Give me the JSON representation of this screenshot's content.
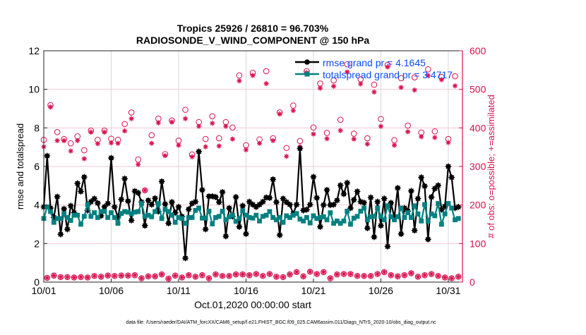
{
  "chart_data": {
    "type": "line",
    "title": "Tropics 25926 / 26810 = 96.703%",
    "subtitle": "RADIOSONDE_V_WIND_COMPONENT @ 150 hPa",
    "xlabel": "Oct.01,2020 00:00:00 start",
    "ylabel": "rmse and totalspread",
    "ylabel_right": "# of obs: o=possible; +=assimilated",
    "footer": "data file: /Users/raeder/DAI/ATM_forcXX/CAM6_setup/f.e21.FHIST_BGC.f09_025.CAM6assim.011/Diags_NTrS_2020-10/obs_diag_output.nc",
    "x_start": "2020-10-01 00:00",
    "x_interval_hours": 6,
    "x_ticks": [
      "10/01",
      "10/06",
      "10/11",
      "10/16",
      "10/21",
      "10/26",
      "10/31"
    ],
    "x_tick_days": [
      0,
      5,
      10,
      15,
      20,
      25,
      30
    ],
    "xlim_days": [
      0,
      31.05
    ],
    "ylim": [
      0,
      12
    ],
    "y_ticks": [
      "0",
      "2",
      "4",
      "6",
      "8",
      "10",
      "12"
    ],
    "ylim_right": [
      0,
      600
    ],
    "y_ticks_right": [
      "0",
      "100",
      "200",
      "300",
      "400",
      "500",
      "600"
    ],
    "grid": true,
    "legend_position": "top-right",
    "colors": {
      "rmse": "#000000",
      "spread": "#008080",
      "obs": "#d9114f",
      "legend_text": "#0a4cff",
      "grid_h": "#f2c6d4",
      "grid_v": "#d8d8d8"
    },
    "series": [
      {
        "name": "rmse grand pr = 4.1645",
        "axis": "left",
        "marker": "filled-asterisk-circle",
        "values": [
          3.9,
          6.55,
          3.84,
          3.35,
          4.43,
          2.48,
          3.8,
          2.74,
          3.96,
          3.6,
          5.12,
          4.7,
          5.45,
          3.72,
          4.17,
          4.33,
          4.1,
          3.44,
          3.9,
          4.08,
          6.44,
          3.9,
          3.35,
          4.29,
          5.37,
          4.2,
          3.2,
          4.72,
          4.63,
          4.15,
          2.93,
          4.24,
          4.02,
          4.35,
          3.66,
          5.22,
          4.05,
          3.05,
          4.15,
          3.6,
          3.9,
          3.4,
          1.24,
          3.78,
          4.08,
          4.17,
          6.77,
          4.78,
          2.74,
          4.45,
          4.45,
          4.41,
          4.15,
          4.67,
          2.38,
          3.84,
          3.41,
          4.41,
          2.87,
          3.96,
          2.5,
          4.17,
          4.02,
          3.9,
          4.02,
          4.17,
          4.39,
          4.37,
          5.33,
          4.15,
          2.44,
          4.33,
          4.15,
          4.02,
          3.54,
          4.02,
          6.93,
          3.72,
          3.76,
          4.02,
          5.46,
          4.37,
          2.87,
          4.0,
          4.78,
          4.0,
          4.02,
          4.24,
          5.02,
          4.57,
          5.15,
          3.84,
          4.27,
          4.7,
          4.17,
          4.12,
          2.8,
          4.39,
          2.34,
          4.17,
          2.93,
          4.33,
          1.85,
          4.11,
          3.35,
          4.88,
          2.5,
          3.84,
          3.68,
          4.73,
          2.68,
          4.33,
          5.43,
          4.98,
          2.22,
          4.41,
          4.85,
          5.02,
          3.76,
          3.93,
          6.0,
          5.43,
          3.84,
          3.9
        ]
      },
      {
        "name": "totalspread grand pr = 3.4717",
        "axis": "left",
        "marker": "square",
        "values": [
          3.3,
          3.9,
          3.66,
          3.1,
          3.3,
          3.3,
          3.54,
          3.35,
          3.2,
          3.47,
          3.47,
          3.0,
          3.41,
          4.02,
          3.41,
          3.6,
          3.35,
          3.66,
          3.68,
          3.35,
          3.6,
          3.35,
          3.05,
          3.56,
          3.66,
          3.63,
          3.54,
          3.63,
          3.66,
          4.08,
          3.41,
          3.47,
          3.39,
          3.66,
          4.08,
          3.3,
          3.78,
          3.66,
          3.47,
          3.1,
          3.35,
          3.3,
          3.05,
          3.35,
          3.35,
          3.72,
          3.84,
          3.32,
          3.32,
          3.68,
          3.02,
          3.35,
          3.41,
          3.68,
          3.23,
          3.39,
          3.47,
          3.15,
          3.3,
          3.7,
          3.47,
          3.35,
          3.32,
          3.47,
          3.17,
          3.41,
          3.47,
          3.66,
          3.35,
          3.23,
          3.35,
          3.1,
          3.44,
          3.35,
          3.47,
          3.56,
          3.27,
          3.17,
          3.35,
          3.07,
          3.44,
          3.3,
          3.35,
          3.39,
          3.23,
          3.6,
          3.05,
          3.17,
          3.05,
          3.17,
          3.68,
          3.0,
          3.32,
          3.41,
          3.68,
          3.84,
          3.23,
          3.39,
          3.41,
          3.84,
          3.41,
          3.23,
          3.96,
          3.39,
          3.23,
          3.39,
          3.84,
          3.35,
          3.6,
          3.35,
          3.96,
          3.54,
          3.17,
          4.02,
          3.17,
          3.54,
          3.44,
          4.08,
          3.0,
          3.54,
          4.08,
          3.84,
          3.23,
          3.3
        ]
      },
      {
        "name": "possible",
        "axis": "right",
        "marker": "circle",
        "values": [
          369,
          11,
          459,
          17,
          389,
          13,
          371,
          13,
          360,
          12,
          378,
          13,
          342,
          12,
          393,
          16,
          369,
          14,
          393,
          17,
          372,
          16,
          369,
          17,
          410,
          17,
          440,
          18,
          318,
          10,
          238,
          15,
          381,
          15,
          424,
          20,
          332,
          9,
          419,
          17,
          367,
          12,
          447,
          18,
          331,
          14,
          415,
          18,
          371,
          10,
          430,
          20,
          373,
          16,
          415,
          16,
          401,
          20,
          536,
          20,
          355,
          18,
          543,
          21,
          370,
          16,
          547,
          21,
          373,
          14,
          440,
          13,
          348,
          20,
          458,
          26,
          366,
          15,
          547,
          27,
          401,
          21,
          515,
          26,
          387,
          10,
          523,
          20,
          421,
          21,
          565,
          21,
          385,
          16,
          526,
          16,
          373,
          16,
          512,
          21,
          423,
          26,
          563,
          18,
          368,
          15,
          529,
          18,
          406,
          23,
          531,
          14,
          388,
          18,
          552,
          21,
          391,
          16,
          532,
          12,
          371,
          10,
          534,
          14
        ]
      },
      {
        "name": "assimilated",
        "axis": "right",
        "marker": "asterisk",
        "values": [
          351,
          11,
          454,
          17,
          367,
          13,
          367,
          13,
          340,
          12,
          367,
          13,
          320,
          12,
          389,
          16,
          359,
          14,
          389,
          17,
          361,
          16,
          360,
          17,
          392,
          17,
          424,
          18,
          305,
          10,
          238,
          15,
          360,
          15,
          413,
          20,
          328,
          9,
          415,
          17,
          355,
          12,
          424,
          18,
          325,
          14,
          404,
          18,
          351,
          10,
          412,
          20,
          353,
          16,
          404,
          16,
          371,
          20,
          522,
          20,
          343,
          18,
          536,
          21,
          360,
          16,
          515,
          21,
          367,
          14,
          436,
          13,
          326,
          20,
          445,
          26,
          351,
          15,
          543,
          27,
          384,
          21,
          503,
          26,
          372,
          10,
          508,
          20,
          393,
          21,
          545,
          21,
          371,
          16,
          514,
          16,
          358,
          16,
          493,
          21,
          404,
          26,
          558,
          18,
          355,
          15,
          505,
          18,
          390,
          23,
          498,
          14,
          377,
          18,
          536,
          21,
          375,
          16,
          525,
          12,
          362,
          10,
          509,
          14
        ]
      }
    ]
  }
}
